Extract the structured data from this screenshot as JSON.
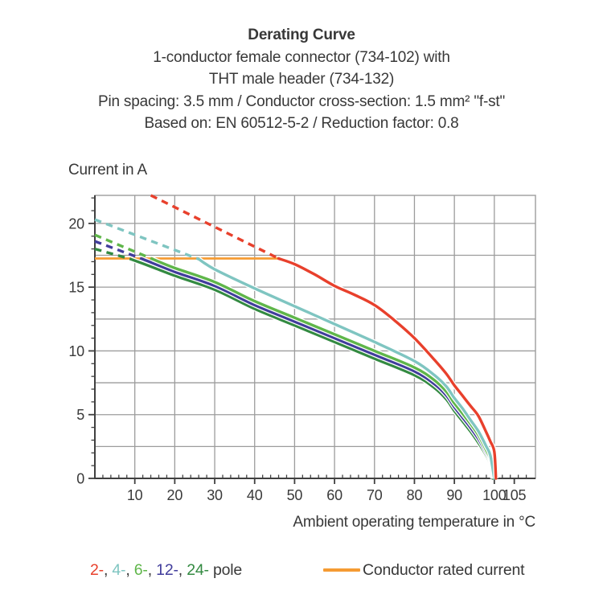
{
  "header": {
    "lines": [
      "Derating Curve",
      "1-conductor female connector (734-102) with",
      "THT male header (734-132)",
      "Pin spacing: 3.5 mm / Conductor cross-section: 1.5 mm² \"f-st\"",
      "Based on: EN 60512-5-2 / Reduction factor: 0.8"
    ]
  },
  "colors": {
    "pole2_red": "#e8402c",
    "pole4_cyan": "#7fc5c1",
    "pole6_light_green": "#5fb64a",
    "pole12_indigo": "#413d9c",
    "pole24_dark_green": "#338a41",
    "rated_orange": "#f59b33",
    "grid": "#9c9c9c",
    "axis": "#404040",
    "text": "#3a3a3a"
  },
  "chart_data": {
    "type": "line",
    "title": "Derating Curve",
    "xlabel": "Ambient operating temperature in °C",
    "ylabel": "Current in A",
    "xlim": [
      0,
      110.3
    ],
    "ylim": [
      0,
      22.2
    ],
    "x_ticks": [
      10,
      20,
      30,
      40,
      50,
      60,
      70,
      80,
      90,
      100,
      105
    ],
    "y_ticks": [
      0,
      5,
      10,
      15,
      20
    ],
    "x_grid_every": 10,
    "x_grid_max": 100,
    "y_grid_every": 2.5,
    "y_grid_max": 20,
    "x_minor_every": 2,
    "y_minor_every": 1,
    "grid": true,
    "legend_position": "bottom",
    "series": [
      {
        "name": "conductor-rated-current",
        "color": "#f59b33",
        "solid": [
          [
            0,
            17.25
          ],
          [
            46,
            17.25
          ]
        ]
      },
      {
        "name": "24-pole",
        "color": "#338a41",
        "dashed": [
          [
            0,
            18.0
          ],
          [
            9,
            17.2
          ]
        ],
        "solid": [
          [
            9,
            17.2
          ],
          [
            15,
            16.5
          ],
          [
            20,
            15.9
          ],
          [
            30,
            14.8
          ],
          [
            40,
            13.3
          ],
          [
            50,
            12.0
          ],
          [
            60,
            10.7
          ],
          [
            70,
            9.4
          ],
          [
            80,
            8.1
          ],
          [
            85,
            7.1
          ],
          [
            88,
            6.2
          ],
          [
            90,
            5.3
          ],
          [
            92,
            4.5
          ],
          [
            94,
            3.7
          ],
          [
            96,
            2.8
          ],
          [
            98,
            1.8
          ],
          [
            99,
            1.1
          ],
          [
            99.6,
            0
          ]
        ]
      },
      {
        "name": "12-pole",
        "color": "#413d9c",
        "dashed": [
          [
            0,
            18.6
          ],
          [
            12,
            17.2
          ]
        ],
        "solid": [
          [
            12,
            17.2
          ],
          [
            20,
            16.2
          ],
          [
            30,
            15.1
          ],
          [
            40,
            13.6
          ],
          [
            50,
            12.3
          ],
          [
            60,
            11.0
          ],
          [
            70,
            9.7
          ],
          [
            80,
            8.4
          ],
          [
            85,
            7.4
          ],
          [
            88,
            6.5
          ],
          [
            90,
            5.6
          ],
          [
            92,
            4.8
          ],
          [
            94,
            4.0
          ],
          [
            96,
            3.1
          ],
          [
            98,
            2.0
          ],
          [
            99,
            1.3
          ],
          [
            99.7,
            0
          ]
        ]
      },
      {
        "name": "6-pole",
        "color": "#5fb64a",
        "dashed": [
          [
            0,
            19.1
          ],
          [
            14.5,
            17.2
          ]
        ],
        "solid": [
          [
            14.5,
            17.2
          ],
          [
            20,
            16.5
          ],
          [
            30,
            15.4
          ],
          [
            40,
            13.9
          ],
          [
            50,
            12.6
          ],
          [
            60,
            11.3
          ],
          [
            70,
            10.0
          ],
          [
            80,
            8.7
          ],
          [
            85,
            7.7
          ],
          [
            88,
            6.8
          ],
          [
            90,
            5.9
          ],
          [
            92,
            5.1
          ],
          [
            94,
            4.3
          ],
          [
            96,
            3.4
          ],
          [
            98,
            2.2
          ],
          [
            99,
            1.5
          ],
          [
            99.8,
            0
          ]
        ]
      },
      {
        "name": "4-pole",
        "color": "#7fc5c1",
        "dashed": [
          [
            0,
            20.3
          ],
          [
            26,
            17.2
          ]
        ],
        "solid": [
          [
            26,
            17.2
          ],
          [
            30,
            16.4
          ],
          [
            40,
            14.9
          ],
          [
            50,
            13.5
          ],
          [
            60,
            12.1
          ],
          [
            70,
            10.7
          ],
          [
            80,
            9.2
          ],
          [
            85,
            8.1
          ],
          [
            88,
            7.2
          ],
          [
            90,
            6.3
          ],
          [
            92,
            5.5
          ],
          [
            94,
            4.6
          ],
          [
            96,
            3.7
          ],
          [
            98,
            2.5
          ],
          [
            99,
            1.8
          ],
          [
            100,
            0
          ]
        ]
      },
      {
        "name": "2-pole",
        "color": "#e8402c",
        "dashed": [
          [
            14,
            22.2
          ],
          [
            46,
            17.25
          ]
        ],
        "solid": [
          [
            46,
            17.25
          ],
          [
            50,
            16.8
          ],
          [
            55,
            16.0
          ],
          [
            60,
            15.1
          ],
          [
            65,
            14.4
          ],
          [
            70,
            13.6
          ],
          [
            75,
            12.4
          ],
          [
            80,
            11.0
          ],
          [
            85,
            9.3
          ],
          [
            88,
            8.2
          ],
          [
            90,
            7.3
          ],
          [
            92,
            6.5
          ],
          [
            94,
            5.7
          ],
          [
            96,
            4.9
          ],
          [
            98,
            3.6
          ],
          [
            99,
            2.9
          ],
          [
            100,
            2.1
          ],
          [
            100.4,
            0
          ]
        ]
      }
    ]
  },
  "legend": {
    "pole_items": [
      {
        "label": "2-",
        "color": "#e8402c"
      },
      {
        "label": "4-",
        "color": "#7fc5c1"
      },
      {
        "label": "6-",
        "color": "#5fb64a"
      },
      {
        "label": "12-",
        "color": "#413d9c"
      },
      {
        "label": "24-",
        "color": "#338a41"
      }
    ],
    "separator": ", ",
    "suffix": " pole",
    "rated": {
      "label": "Conductor rated current",
      "color": "#f59b33"
    }
  }
}
